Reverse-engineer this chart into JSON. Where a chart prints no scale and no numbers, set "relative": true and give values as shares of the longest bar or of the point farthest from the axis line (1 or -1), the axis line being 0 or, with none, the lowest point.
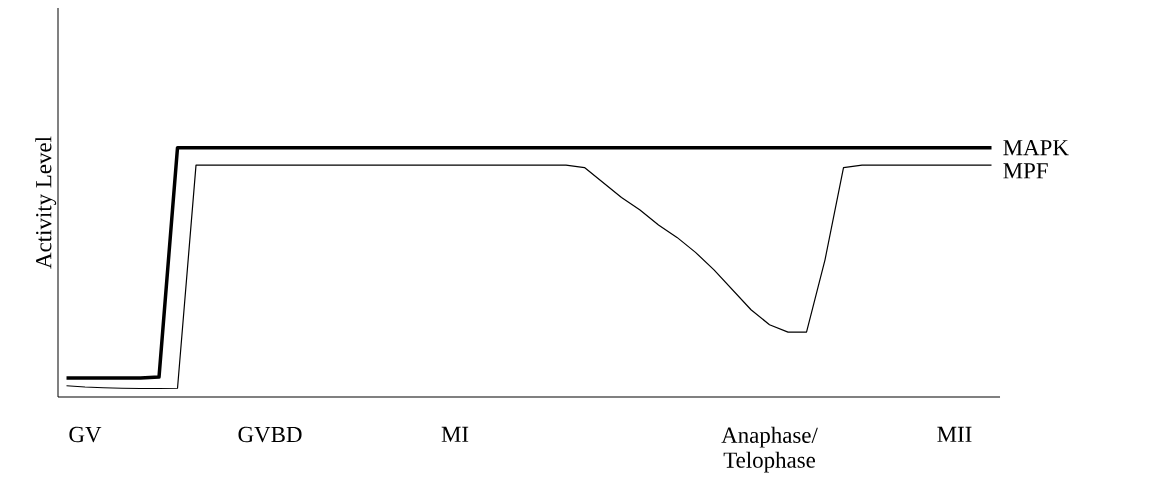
{
  "chart_data": {
    "type": "line",
    "relative": true,
    "ylabel": "Activity Level",
    "categories": [
      null,
      "GV",
      null,
      null,
      null,
      null,
      null,
      null,
      null,
      null,
      null,
      "GVBD",
      null,
      null,
      null,
      null,
      null,
      null,
      null,
      null,
      null,
      "MI",
      null,
      null,
      null,
      null,
      null,
      null,
      null,
      null,
      null,
      null,
      null,
      null,
      null,
      null,
      null,
      null,
      "Anaphase/ Telophase",
      null,
      null,
      null,
      null,
      null,
      null,
      null,
      null,
      null,
      "MII",
      null,
      null
    ],
    "series": [
      {
        "name": "MAPK",
        "color": "#000000",
        "values": [
          0.076,
          0.076,
          0.076,
          0.076,
          0.076,
          0.08,
          1,
          1,
          1,
          1,
          1,
          1,
          1,
          1,
          1,
          1,
          1,
          1,
          1,
          1,
          1,
          1,
          1,
          1,
          1,
          1,
          1,
          1,
          1,
          1,
          1,
          1,
          1,
          1,
          1,
          1,
          1,
          1,
          1,
          1,
          1,
          1,
          1,
          1,
          1,
          1,
          1,
          1,
          1,
          1,
          1
        ]
      },
      {
        "name": "MPF",
        "color": "#000000",
        "values": [
          0.045,
          0.04,
          0.037,
          0.035,
          0.034,
          0.034,
          0.035,
          0.93,
          0.93,
          0.93,
          0.93,
          0.93,
          0.93,
          0.93,
          0.93,
          0.93,
          0.93,
          0.93,
          0.93,
          0.93,
          0.93,
          0.93,
          0.93,
          0.93,
          0.93,
          0.93,
          0.93,
          0.93,
          0.92,
          0.86,
          0.8,
          0.75,
          0.69,
          0.64,
          0.58,
          0.51,
          0.43,
          0.35,
          0.29,
          0.26,
          0.26,
          0.55,
          0.92,
          0.93,
          0.93,
          0.93,
          0.93,
          0.93,
          0.93,
          0.93,
          0.93
        ]
      }
    ]
  }
}
